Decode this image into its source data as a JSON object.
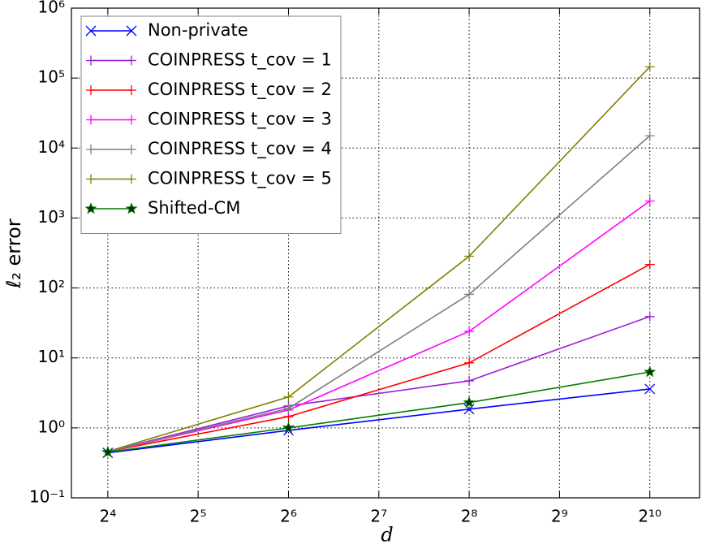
{
  "chart_data": {
    "type": "line",
    "x": [
      16,
      64,
      256,
      1024
    ],
    "xlim": [
      12.1,
      1500
    ],
    "ylim": [
      0.1,
      1000000
    ],
    "xscale": "log2",
    "yscale": "log",
    "grid": true,
    "legend": "upper left",
    "xticks": [
      {
        "value": 16,
        "label": "2⁴"
      },
      {
        "value": 32,
        "label": "2⁵"
      },
      {
        "value": 64,
        "label": "2⁶"
      },
      {
        "value": 128,
        "label": "2⁷"
      },
      {
        "value": 256,
        "label": "2⁸"
      },
      {
        "value": 512,
        "label": "2⁹"
      },
      {
        "value": 1024,
        "label": "2¹⁰"
      }
    ],
    "yticks": [
      {
        "value": 0.1,
        "label": "10⁻¹"
      },
      {
        "value": 1,
        "label": "10⁰"
      },
      {
        "value": 10,
        "label": "10¹"
      },
      {
        "value": 100,
        "label": "10²"
      },
      {
        "value": 1000,
        "label": "10³"
      },
      {
        "value": 10000,
        "label": "10⁴"
      },
      {
        "value": 100000,
        "label": "10⁵"
      },
      {
        "value": 1000000,
        "label": "10⁶"
      }
    ],
    "xlabel": "d",
    "ylabel": "ℓ₂ error",
    "series": [
      {
        "name": "Non-private",
        "color": "#0000ff",
        "marker": "x",
        "values": [
          0.44,
          0.92,
          1.85,
          3.6
        ]
      },
      {
        "name": "COINPRESS t_cov = 1",
        "color": "#9b1fd6",
        "marker": "+",
        "values": [
          0.46,
          2.06,
          4.7,
          39
        ]
      },
      {
        "name": "COINPRESS t_cov = 2",
        "color": "#ff0000",
        "marker": "+",
        "values": [
          0.46,
          1.45,
          8.5,
          217
        ]
      },
      {
        "name": "COINPRESS t_cov = 3",
        "color": "#ff00ff",
        "marker": "+",
        "values": [
          0.46,
          1.8,
          24,
          1750
        ]
      },
      {
        "name": "COINPRESS t_cov = 4",
        "color": "#808080",
        "marker": "+",
        "values": [
          0.46,
          1.9,
          81,
          15000
        ]
      },
      {
        "name": "COINPRESS t_cov = 5",
        "color": "#808000",
        "marker": "+",
        "values": [
          0.46,
          2.77,
          284,
          145000
        ]
      },
      {
        "name": "Shifted-CM",
        "color": "#007f00",
        "marker": "star",
        "values": [
          0.45,
          1.0,
          2.3,
          6.3
        ]
      }
    ]
  }
}
